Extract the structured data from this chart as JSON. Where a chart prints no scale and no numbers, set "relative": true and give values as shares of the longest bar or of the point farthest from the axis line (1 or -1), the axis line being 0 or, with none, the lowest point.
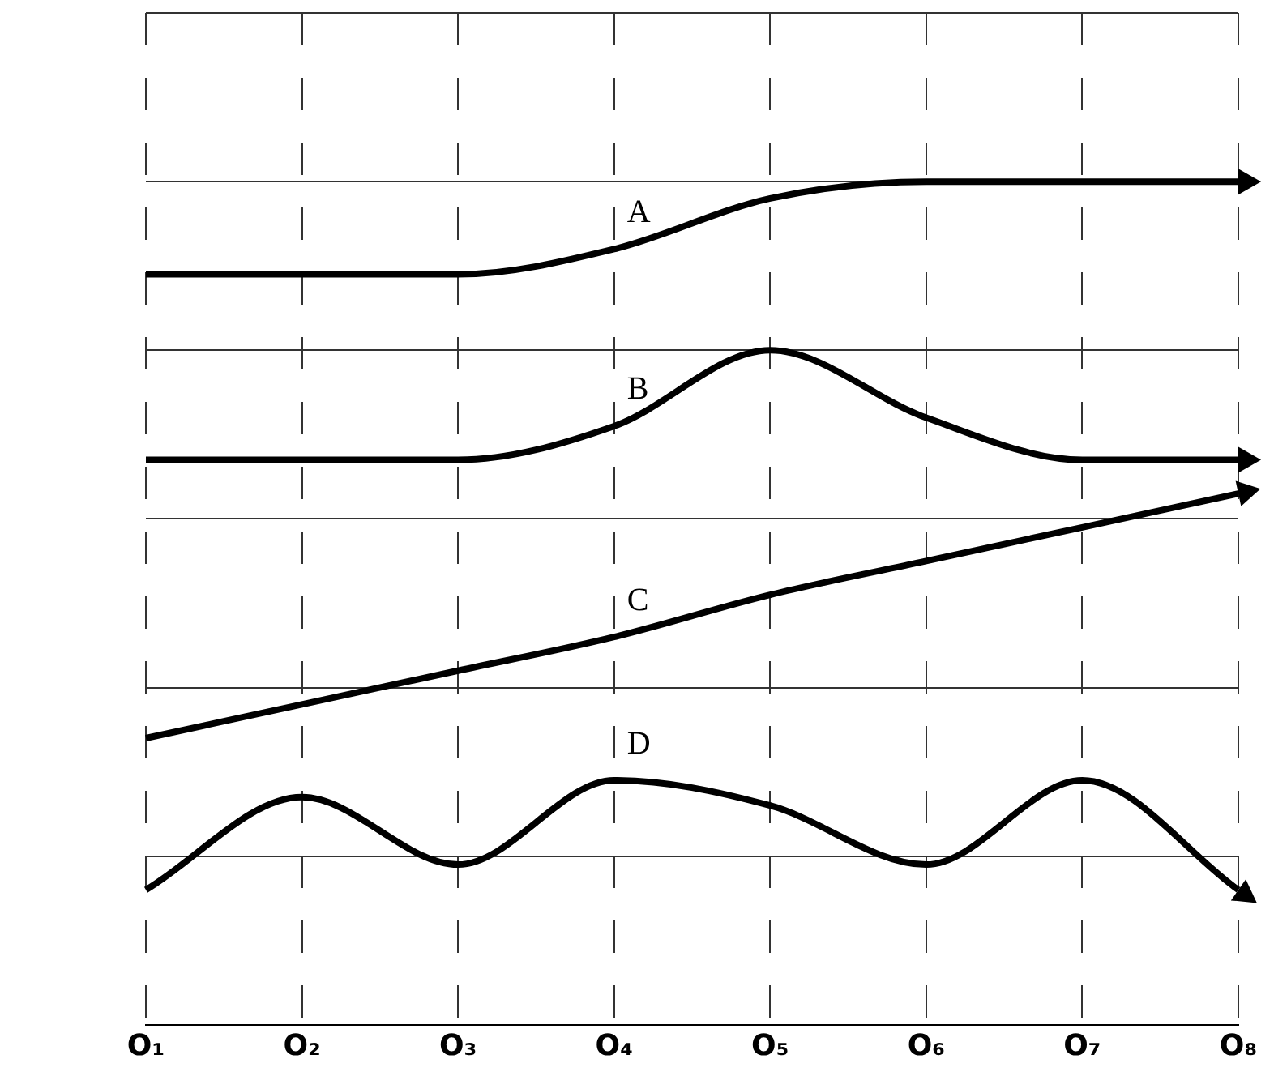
{
  "chart_data": {
    "type": "line",
    "relative": true,
    "grid": true,
    "legend": false,
    "marker": "none",
    "line_style": "solid",
    "categories": [
      "O₁",
      "O₂",
      "O₃",
      "O₄",
      "O₅",
      "O₆",
      "O₇",
      "O₈"
    ],
    "series": [
      {
        "name": "A",
        "color": "#000000",
        "values": [
          0.89,
          0.89,
          0.89,
          0.92,
          0.98,
          1,
          1,
          1
        ]
      },
      {
        "name": "B",
        "color": "#000000",
        "values": [
          0.67,
          0.67,
          0.67,
          0.71,
          0.8,
          0.72,
          0.67,
          0.67
        ]
      },
      {
        "name": "C",
        "color": "#000000",
        "values": [
          0.34,
          0.38,
          0.42,
          0.46,
          0.51,
          0.55,
          0.59,
          0.63
        ]
      },
      {
        "name": "D",
        "color": "#000000",
        "values": [
          0.16,
          0.27,
          0.19,
          0.29,
          0.26,
          0.19,
          0.29,
          0.16
        ]
      }
    ]
  }
}
